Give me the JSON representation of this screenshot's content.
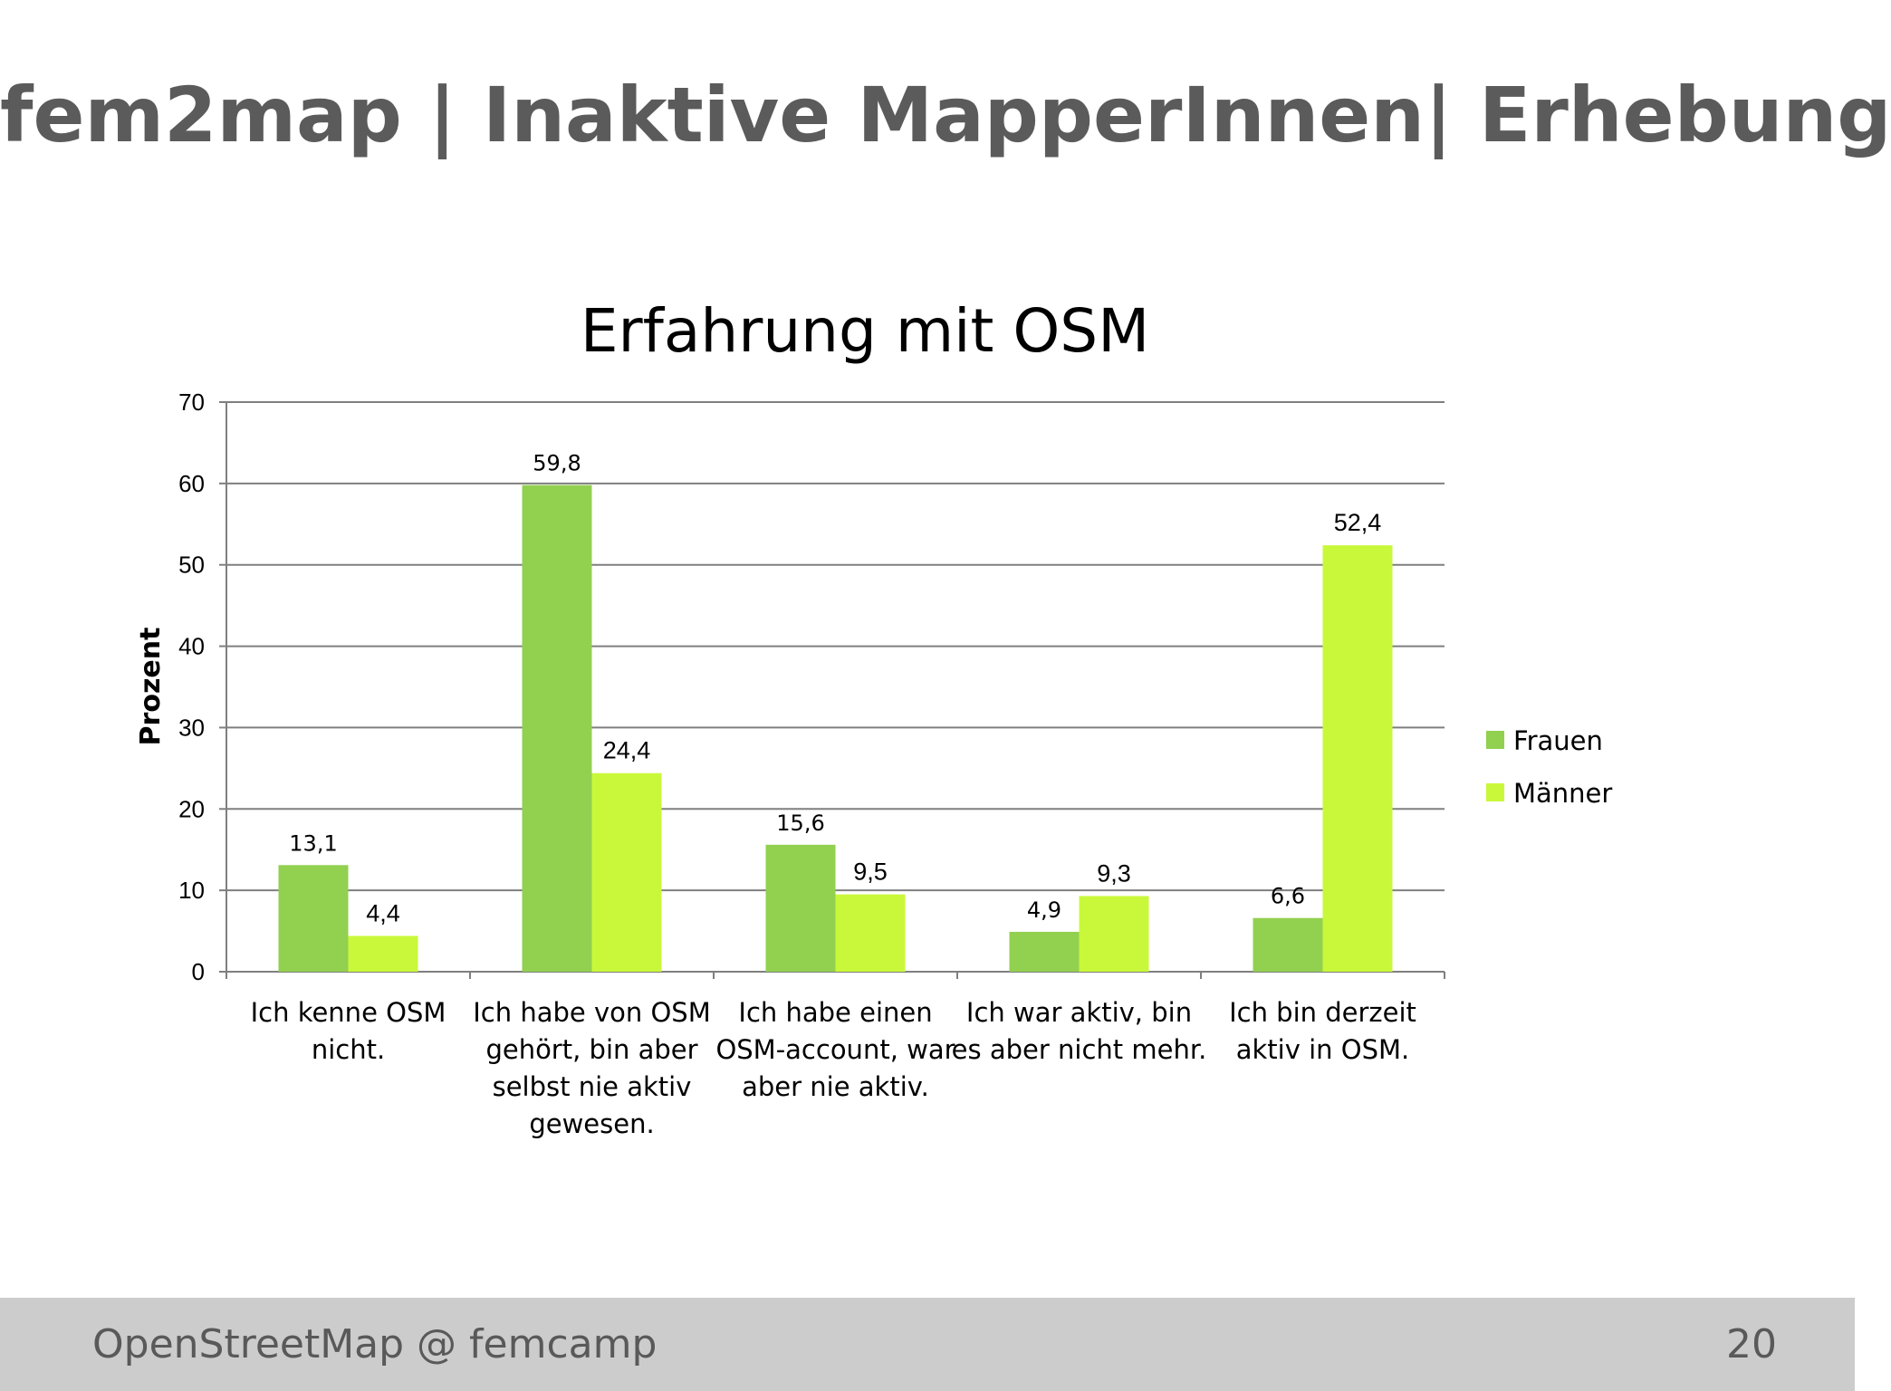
{
  "slide": {
    "title": "fem2map | Inaktive MapperInnen| Erhebung",
    "footer_left": "OpenStreetMap @ femcamp",
    "page_number": "20"
  },
  "colors": {
    "frauen": "#92d050",
    "maenner": "#c9f83a",
    "gridline": "#7f7f7f",
    "title_text": "#5b5b5b",
    "footer_bg": "#cccccc"
  },
  "chart_data": {
    "type": "bar",
    "title": "Erfahrung  mit OSM",
    "xlabel": "",
    "ylabel": "Prozent",
    "ylim": [
      0,
      70
    ],
    "yticks": [
      0,
      10,
      20,
      30,
      40,
      50,
      60,
      70
    ],
    "grid": true,
    "legend_position": "right",
    "categories": [
      [
        "Ich kenne OSM",
        "nicht."
      ],
      [
        "Ich habe von OSM",
        "gehört, bin aber",
        "selbst nie aktiv",
        "gewesen."
      ],
      [
        "Ich habe einen",
        "OSM-account, war",
        "aber nie aktiv."
      ],
      [
        "Ich war aktiv, bin",
        "es aber nicht mehr."
      ],
      [
        "Ich bin derzeit",
        "aktiv in OSM."
      ]
    ],
    "series": [
      {
        "name": "Frauen",
        "values": [
          13.1,
          59.8,
          15.6,
          4.9,
          6.6
        ],
        "labels": [
          "13,1",
          "59,8",
          "15,6",
          "4,9",
          "6,6"
        ]
      },
      {
        "name": "Männer",
        "values": [
          4.4,
          24.4,
          9.5,
          9.3,
          52.4
        ],
        "labels": [
          "4,4",
          "24,4",
          "9,5",
          "9,3",
          "52,4"
        ]
      }
    ]
  }
}
